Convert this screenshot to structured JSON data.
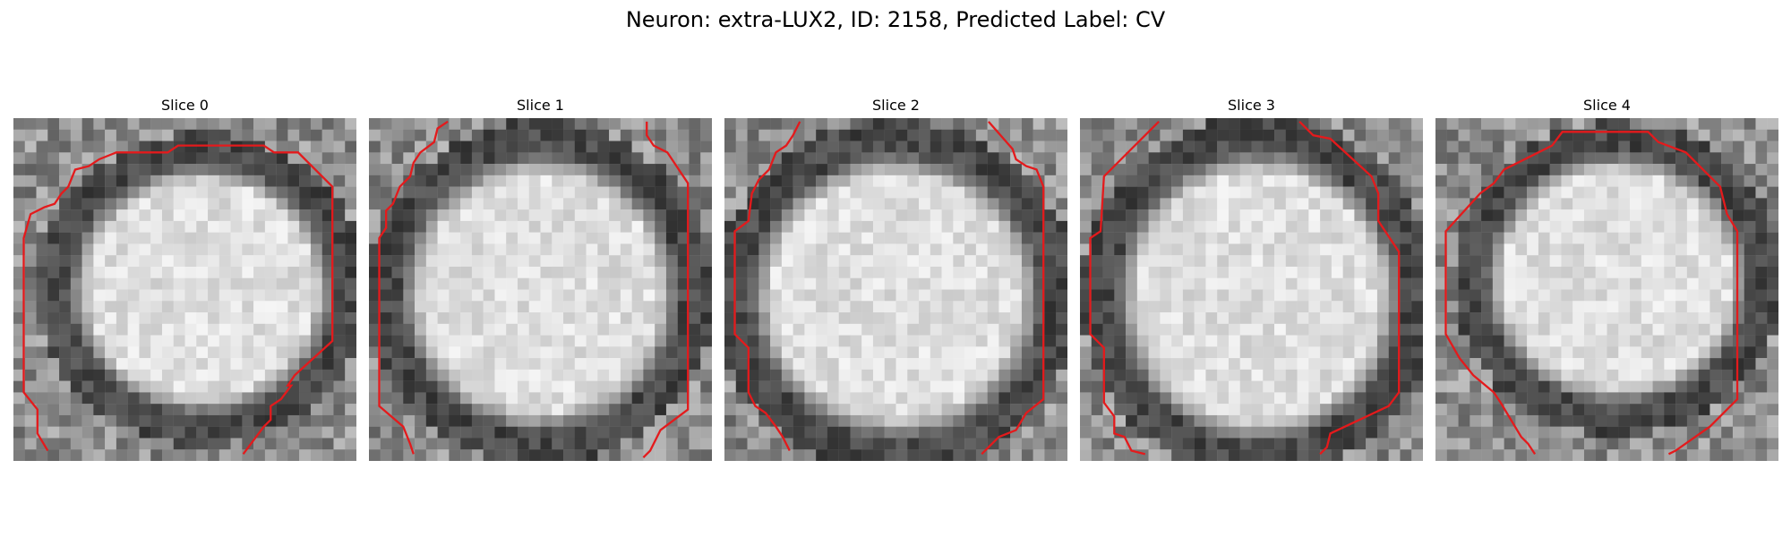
{
  "figure": {
    "title": "Neuron: extra-LUX2, ID: 2158, Predicted Label: CV"
  },
  "colors": {
    "contour": "#e41a1c",
    "background": "#ffffff"
  },
  "panels": [
    {
      "title": "Slice 0"
    },
    {
      "title": "Slice 1"
    },
    {
      "title": "Slice 2"
    },
    {
      "title": "Slice 3"
    },
    {
      "title": "Slice 4"
    }
  ]
}
